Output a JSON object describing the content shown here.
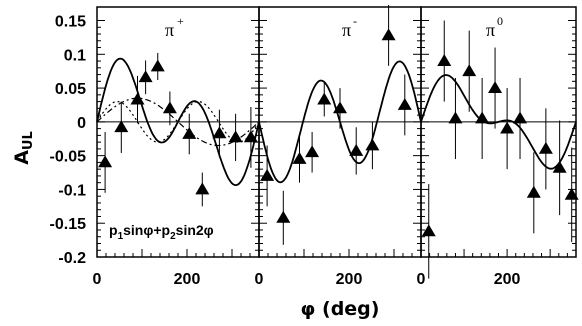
{
  "chart_data": {
    "type": "scatter",
    "xlabel": "φ (deg)",
    "ylabel": "A",
    "ylabel_sub": "UL",
    "ylim": [
      -0.2,
      0.17
    ],
    "xlim": [
      0,
      360
    ],
    "y_ticks": [
      "0.15",
      "0.1",
      "0.05",
      "0",
      "-0.05",
      "-0.1",
      "-0.15",
      "-0.2"
    ],
    "x_ticks": [
      "0",
      "200"
    ],
    "fit_formula": {
      "p1": "p",
      "s1": "1",
      "mid": "sinφ+p",
      "s2": "2",
      "end": "sin2φ"
    },
    "panels": [
      {
        "label": "π",
        "charge": "+",
        "points": [
          {
            "x": 18,
            "y": -0.06,
            "err": 0.045
          },
          {
            "x": 54,
            "y": -0.008,
            "err": 0.038
          },
          {
            "x": 90,
            "y": 0.033,
            "err": 0.035
          },
          {
            "x": 108,
            "y": 0.066,
            "err": 0.025
          },
          {
            "x": 135,
            "y": 0.082,
            "err": 0.02
          },
          {
            "x": 162,
            "y": 0.02,
            "err": 0.025
          },
          {
            "x": 205,
            "y": -0.018,
            "err": 0.03
          },
          {
            "x": 234,
            "y": -0.1,
            "err": 0.025
          },
          {
            "x": 272,
            "y": -0.017,
            "err": 0.035
          },
          {
            "x": 308,
            "y": -0.023,
            "err": 0.035
          },
          {
            "x": 342,
            "y": -0.023,
            "err": 0.045
          }
        ],
        "fits": [
          {
            "style": "solid",
            "p1": 0.045,
            "p2": 0.06
          },
          {
            "style": "dashed",
            "p1": 0.035,
            "p2": 0.0
          },
          {
            "style": "dotted",
            "p1": 0.0,
            "p2": 0.03
          }
        ]
      },
      {
        "label": "π",
        "charge": "-",
        "points": [
          {
            "x": 18,
            "y": -0.08,
            "err": 0.045
          },
          {
            "x": 54,
            "y": -0.142,
            "err": 0.04
          },
          {
            "x": 90,
            "y": -0.055,
            "err": 0.035
          },
          {
            "x": 118,
            "y": -0.045,
            "err": 0.03
          },
          {
            "x": 145,
            "y": 0.033,
            "err": 0.025
          },
          {
            "x": 180,
            "y": 0.02,
            "err": 0.03
          },
          {
            "x": 216,
            "y": -0.043,
            "err": 0.035
          },
          {
            "x": 252,
            "y": -0.035,
            "err": 0.035
          },
          {
            "x": 288,
            "y": 0.128,
            "err": 0.045
          },
          {
            "x": 324,
            "y": 0.025,
            "err": 0.045
          }
        ],
        "fits": [
          {
            "style": "solid",
            "p1": -0.02,
            "p2": -0.075
          }
        ]
      },
      {
        "label": "π",
        "charge": "0",
        "points": [
          {
            "x": 18,
            "y": -0.162,
            "err": 0.07
          },
          {
            "x": 54,
            "y": 0.09,
            "err": 0.06
          },
          {
            "x": 80,
            "y": 0.005,
            "err": 0.06
          },
          {
            "x": 112,
            "y": 0.075,
            "err": 0.06
          },
          {
            "x": 142,
            "y": 0.005,
            "err": 0.06
          },
          {
            "x": 172,
            "y": 0.05,
            "err": 0.06
          },
          {
            "x": 200,
            "y": -0.01,
            "err": 0.06
          },
          {
            "x": 230,
            "y": 0.005,
            "err": 0.06
          },
          {
            "x": 262,
            "y": -0.105,
            "err": 0.06
          },
          {
            "x": 290,
            "y": -0.04,
            "err": 0.06
          },
          {
            "x": 322,
            "y": -0.068,
            "err": 0.07
          },
          {
            "x": 350,
            "y": -0.108,
            "err": 0.07
          }
        ],
        "fits": [
          {
            "style": "solid",
            "p1": 0.05,
            "p2": 0.03
          }
        ]
      }
    ]
  }
}
